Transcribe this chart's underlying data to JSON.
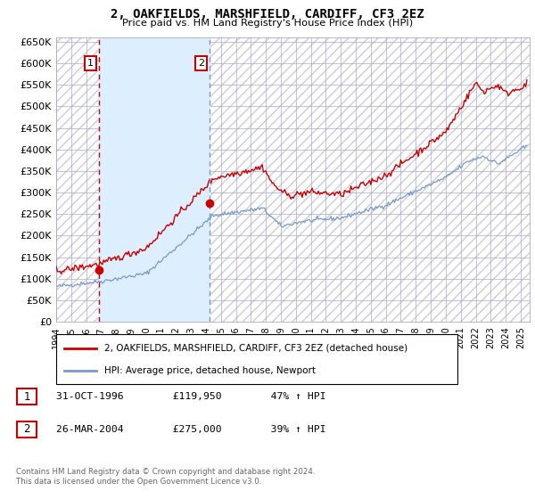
{
  "title": "2, OAKFIELDS, MARSHFIELD, CARDIFF, CF3 2EZ",
  "subtitle": "Price paid vs. HM Land Registry's House Price Index (HPI)",
  "legend_line1": "2, OAKFIELDS, MARSHFIELD, CARDIFF, CF3 2EZ (detached house)",
  "legend_line2": "HPI: Average price, detached house, Newport",
  "footer": "Contains HM Land Registry data © Crown copyright and database right 2024.\nThis data is licensed under the Open Government Licence v3.0.",
  "t1_label": "1",
  "t1_date": "31-OCT-1996",
  "t1_price": "£119,950",
  "t1_hpi": "47% ↑ HPI",
  "t2_label": "2",
  "t2_date": "26-MAR-2004",
  "t2_price": "£275,000",
  "t2_hpi": "39% ↑ HPI",
  "vline1_year": 1996.83,
  "vline2_year": 2004.23,
  "dot1_year": 1996.83,
  "dot1_price": 119950,
  "dot2_year": 2004.23,
  "dot2_price": 275000,
  "shade_start": 1996.83,
  "shade_end": 2004.23,
  "ylim": [
    0,
    660000
  ],
  "ytick_step": 50000,
  "xmin": 1994.0,
  "xmax": 2025.6,
  "red_color": "#cc0000",
  "blue_color": "#7799cc",
  "shade_color": "#ddeeff",
  "grid_color": "#aaaacc",
  "background_color": "#ffffff",
  "hatch_color": "#ccccdd",
  "label_box_color": "#cc0000"
}
